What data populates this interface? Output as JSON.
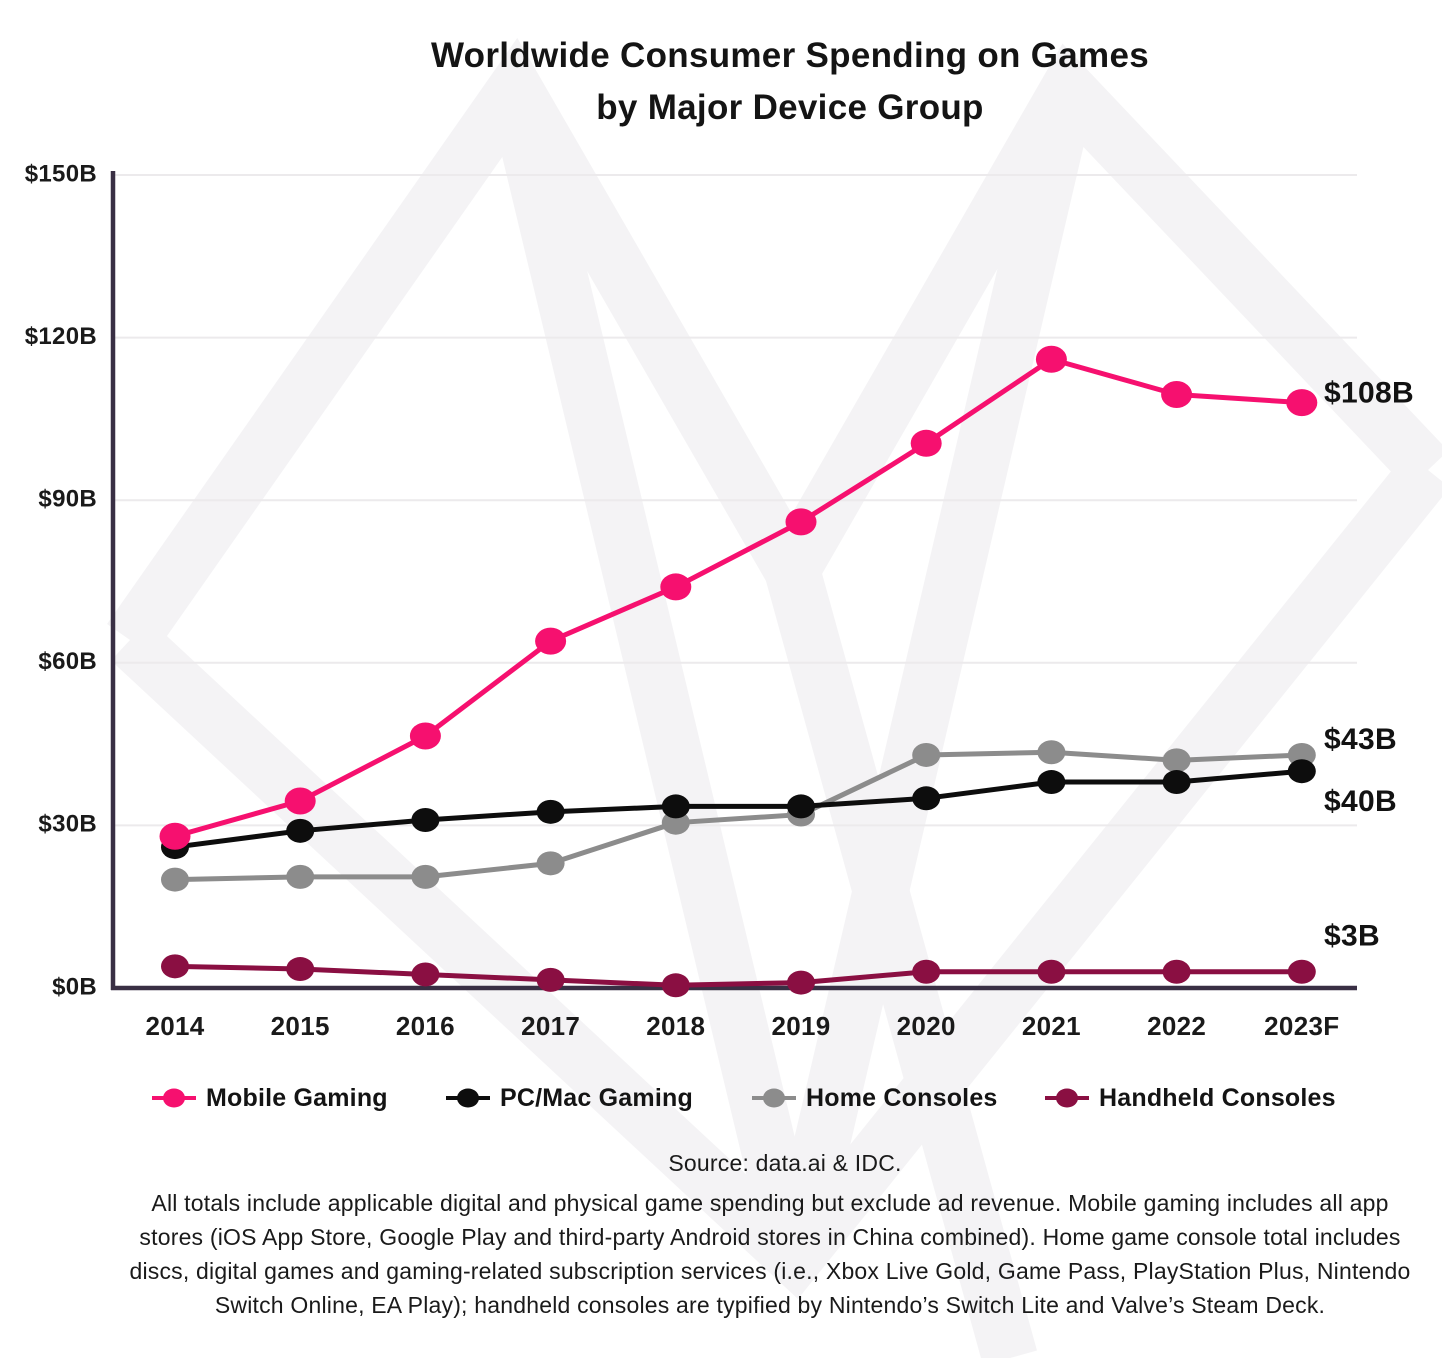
{
  "header": {
    "line1": "Worldwide Consumer Spending on Games",
    "line2": "by Major Device Group"
  },
  "chart_data": {
    "type": "line",
    "title": "Worldwide Consumer Spending on Games by Major Device Group",
    "categories": [
      "2014",
      "2015",
      "2016",
      "2017",
      "2018",
      "2019",
      "2020",
      "2021",
      "2022",
      "2023F"
    ],
    "series": [
      {
        "name": "Mobile Gaming",
        "color": "#F6106F",
        "values": [
          28,
          34.5,
          46.5,
          64,
          74,
          86,
          100.5,
          116,
          109.5,
          108
        ],
        "end_label": "$108B"
      },
      {
        "name": "PC/Mac Gaming",
        "color": "#0D0D0D",
        "values": [
          26,
          29,
          31,
          32.5,
          33.5,
          33.5,
          35,
          38,
          38,
          40
        ],
        "end_label": "$40B"
      },
      {
        "name": "Home Consoles",
        "color": "#8C8C8C",
        "values": [
          20,
          20.5,
          20.5,
          23,
          30.5,
          32,
          43,
          43.5,
          42,
          43
        ],
        "end_label": "$43B"
      },
      {
        "name": "Handheld Consoles",
        "color": "#8A0F42",
        "values": [
          4,
          3.5,
          2.5,
          1.5,
          0.5,
          1,
          3,
          3,
          3,
          3
        ],
        "end_label": "$3B"
      }
    ],
    "y_ticks": [
      {
        "value": 0,
        "label": "$0B"
      },
      {
        "value": 30,
        "label": "$30B"
      },
      {
        "value": 60,
        "label": "$60B"
      },
      {
        "value": 90,
        "label": "$90B"
      },
      {
        "value": 120,
        "label": "$120B"
      },
      {
        "value": 150,
        "label": "$150B"
      }
    ],
    "ylim": [
      0,
      150
    ],
    "xlabel": "",
    "ylabel": "",
    "grid": true,
    "legend_position": "bottom"
  },
  "footer": {
    "source": "Source: data.ai & IDC.",
    "note": "All totals include applicable digital and physical game spending but exclude ad revenue. Mobile gaming includes all app stores (iOS App Store, Google Play and third-party Android stores in China combined). Home game console total includes discs, digital games and gaming-related subscription services (i.e., Xbox Live Gold, Game Pass, PlayStation Plus, Nintendo Switch Online, EA Play); handheld consoles are typified by Nintendo’s Switch Lite and Valve’s Steam Deck."
  },
  "colors": {
    "axis": "#392F44",
    "gridline": "#ECEAEC",
    "watermark": "#F4F3F5",
    "text": "#141414"
  }
}
